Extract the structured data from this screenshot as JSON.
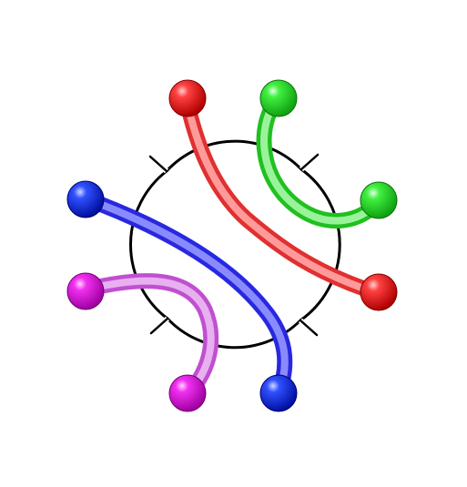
{
  "puzzle": {
    "board_shape": "four-lobed clover",
    "colors": {
      "background": "#ffffff",
      "outline": "#000000",
      "red": "#ff1414",
      "green": "#22e022",
      "blue": "#2a2aff",
      "magenta": "#e01ee0",
      "red_tube": "#ff7a7a",
      "green_tube": "#7af07a",
      "blue_tube": "#6a6aff",
      "magenta_tube": "#d78ae8"
    },
    "connections": [
      {
        "color": "red",
        "icon": "red-ball"
      },
      {
        "color": "green",
        "icon": "green-ball"
      },
      {
        "color": "blue",
        "icon": "blue-ball"
      },
      {
        "color": "magenta",
        "icon": "magenta-ball"
      }
    ]
  }
}
